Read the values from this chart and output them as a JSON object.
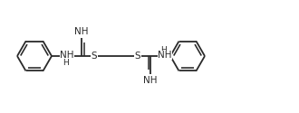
{
  "bg_color": "#ffffff",
  "line_color": "#2a2a2a",
  "line_width": 1.3,
  "font_size": 7.5,
  "figsize": [
    3.3,
    1.25
  ],
  "dpi": 100,
  "xlim": [
    0,
    330
  ],
  "ylim": [
    0,
    125
  ]
}
